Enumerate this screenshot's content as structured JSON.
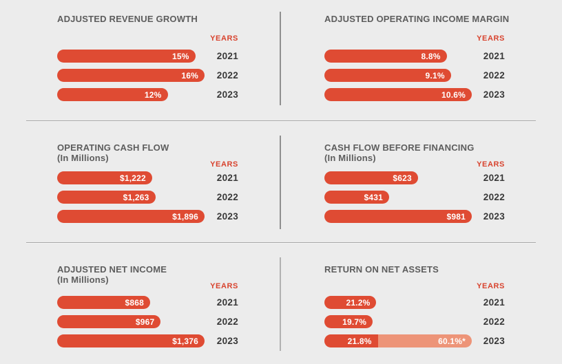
{
  "colors": {
    "accent": "#df4b33",
    "accent_light": "#ed9478",
    "background": "#ececec",
    "title_text": "#5d5d5d",
    "year_text": "#383838",
    "divider": "#a7a7a7"
  },
  "labels": {
    "years_header": "YEARS"
  },
  "panels": [
    {
      "title": "ADJUSTED REVENUE GROWTH",
      "subtitle": "",
      "scale_max": 16,
      "rows": [
        {
          "year": "2021",
          "label": "15%",
          "value": 15
        },
        {
          "year": "2022",
          "label": "16%",
          "value": 16
        },
        {
          "year": "2023",
          "label": "12%",
          "value": 12
        }
      ]
    },
    {
      "title": "ADJUSTED OPERATING INCOME MARGIN",
      "subtitle": "",
      "scale_max": 10.6,
      "rows": [
        {
          "year": "2021",
          "label": "8.8%",
          "value": 8.8
        },
        {
          "year": "2022",
          "label": "9.1%",
          "value": 9.1
        },
        {
          "year": "2023",
          "label": "10.6%",
          "value": 10.6
        }
      ]
    },
    {
      "title": "OPERATING CASH FLOW",
      "subtitle": "(In Millions)",
      "scale_max": 1896,
      "rows": [
        {
          "year": "2021",
          "label": "$1,222",
          "value": 1222
        },
        {
          "year": "2022",
          "label": "$1,263",
          "value": 1263
        },
        {
          "year": "2023",
          "label": "$1,896",
          "value": 1896
        }
      ]
    },
    {
      "title": "CASH FLOW BEFORE FINANCING",
      "subtitle": "(In Millions)",
      "scale_max": 981,
      "rows": [
        {
          "year": "2021",
          "label": "$623",
          "value": 623
        },
        {
          "year": "2022",
          "label": "$431",
          "value": 431
        },
        {
          "year": "2023",
          "label": "$981",
          "value": 981
        }
      ]
    },
    {
      "title": "ADJUSTED NET INCOME",
      "subtitle": "(In Millions)",
      "scale_max": 1376,
      "rows": [
        {
          "year": "2021",
          "label": "$868",
          "value": 868
        },
        {
          "year": "2022",
          "label": "$967",
          "value": 967
        },
        {
          "year": "2023",
          "label": "$1,376",
          "value": 1376
        }
      ]
    },
    {
      "title": "RETURN ON NET ASSETS",
      "subtitle": "",
      "scale_max": 60.1,
      "rows": [
        {
          "year": "2021",
          "label": "21.2%",
          "value": 21.2
        },
        {
          "year": "2022",
          "label": "19.7%",
          "value": 19.7
        },
        {
          "year": "2023",
          "label": "21.8%",
          "value": 21.8
        }
      ],
      "overlay": {
        "year": "2023",
        "label": "60.1%*",
        "value": 60.1
      }
    }
  ],
  "chart_data": [
    {
      "type": "bar",
      "orientation": "horizontal",
      "title": "ADJUSTED REVENUE GROWTH",
      "categories": [
        "2021",
        "2022",
        "2023"
      ],
      "values": [
        15,
        16,
        12
      ],
      "unit": "%",
      "value_labels": [
        "15%",
        "16%",
        "12%"
      ],
      "ylabel": "YEARS",
      "grid": false,
      "legend": false
    },
    {
      "type": "bar",
      "orientation": "horizontal",
      "title": "ADJUSTED OPERATING INCOME MARGIN",
      "categories": [
        "2021",
        "2022",
        "2023"
      ],
      "values": [
        8.8,
        9.1,
        10.6
      ],
      "unit": "%",
      "value_labels": [
        "8.8%",
        "9.1%",
        "10.6%"
      ],
      "ylabel": "YEARS",
      "grid": false,
      "legend": false
    },
    {
      "type": "bar",
      "orientation": "horizontal",
      "title": "OPERATING CASH FLOW",
      "subtitle": "(In Millions)",
      "categories": [
        "2021",
        "2022",
        "2023"
      ],
      "values": [
        1222,
        1263,
        1896
      ],
      "unit": "$ millions",
      "value_labels": [
        "$1,222",
        "$1,263",
        "$1,896"
      ],
      "ylabel": "YEARS",
      "grid": false,
      "legend": false
    },
    {
      "type": "bar",
      "orientation": "horizontal",
      "title": "CASH FLOW BEFORE FINANCING",
      "subtitle": "(In Millions)",
      "categories": [
        "2021",
        "2022",
        "2023"
      ],
      "values": [
        623,
        431,
        981
      ],
      "unit": "$ millions",
      "value_labels": [
        "$623",
        "$431",
        "$981"
      ],
      "ylabel": "YEARS",
      "grid": false,
      "legend": false
    },
    {
      "type": "bar",
      "orientation": "horizontal",
      "title": "ADJUSTED NET INCOME",
      "subtitle": "(In Millions)",
      "categories": [
        "2021",
        "2022",
        "2023"
      ],
      "values": [
        868,
        967,
        1376
      ],
      "unit": "$ millions",
      "value_labels": [
        "$868",
        "$967",
        "$1,376"
      ],
      "ylabel": "YEARS",
      "grid": false,
      "legend": false
    },
    {
      "type": "bar",
      "orientation": "horizontal",
      "title": "RETURN ON NET ASSETS",
      "categories": [
        "2021",
        "2022",
        "2023"
      ],
      "values": [
        21.2,
        19.7,
        21.8
      ],
      "unit": "%",
      "value_labels": [
        "21.2%",
        "19.7%",
        "21.8%"
      ],
      "extra_segment": {
        "category": "2023",
        "value": 60.1,
        "label": "60.1%*",
        "style": "light-shade"
      },
      "ylabel": "YEARS",
      "grid": false,
      "legend": false
    }
  ]
}
